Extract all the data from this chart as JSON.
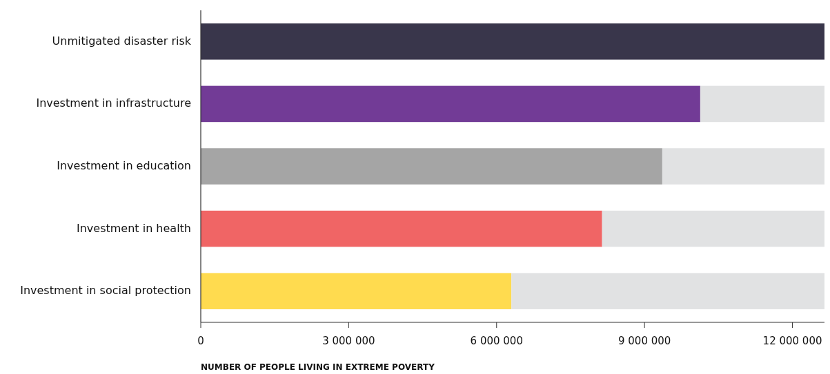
{
  "chart_data": {
    "type": "bar",
    "orientation": "horizontal",
    "stacked": true,
    "categories": [
      "Unmitigated disaster risk",
      "Investment in infrastructure",
      "Investment in education",
      "Investment in health",
      "Investment in social protection"
    ],
    "series": [
      {
        "colors": [
          "#39364b",
          "#723b96",
          "#a5a5a5",
          "#f06565",
          "#ffdb4f"
        ],
        "values": [
          12650000,
          10130000,
          9360000,
          8140000,
          6300000
        ]
      },
      {
        "color": "#e1e2e3",
        "values": [
          null,
          2520000,
          3290000,
          4510000,
          6350000
        ]
      }
    ],
    "xlabel": "NUMBER OF PEOPLE LIVING IN EXTREME POVERTY",
    "xlim": [
      0,
      12650000
    ],
    "xticks": [
      0,
      {
        "value": 3000000,
        "label": "3 000 000"
      },
      {
        "value": 6000000,
        "label": "6 000 000"
      },
      {
        "value": 9000000,
        "label": "9 000 000"
      },
      {
        "value": 12000000,
        "label": "12 000 000"
      }
    ],
    "grid": false
  }
}
